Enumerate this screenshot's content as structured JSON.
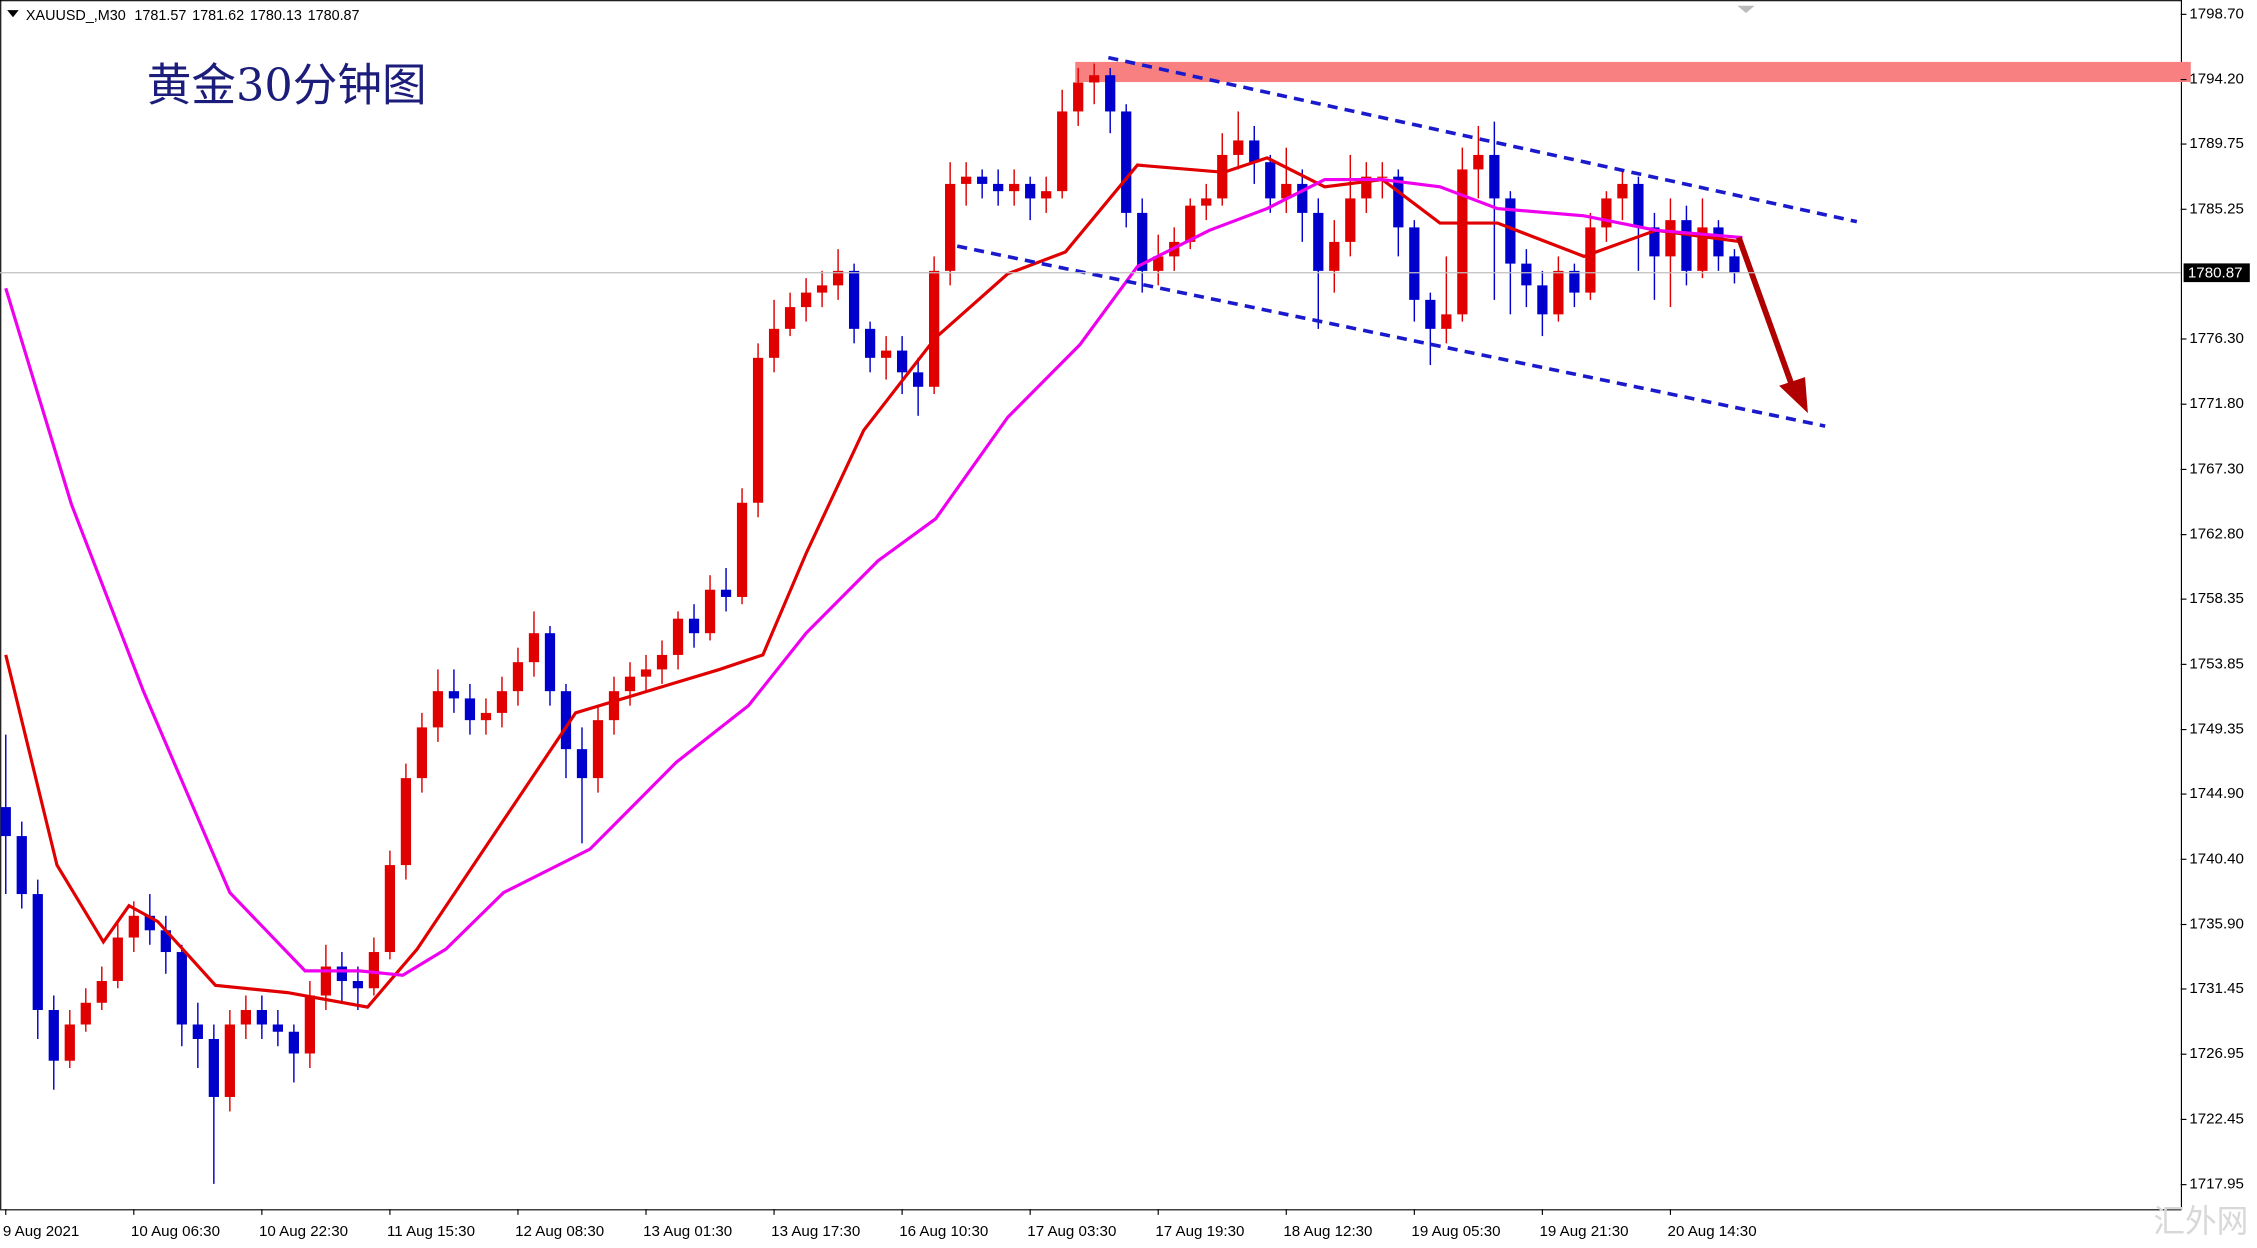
{
  "chart_data": {
    "type": "candlestick",
    "title": "黄金30分钟图",
    "symbol": "XAUUSD_,M30",
    "last_bar_ohlc": [
      1781.57,
      1781.62,
      1780.13,
      1780.87
    ],
    "current_price": 1780.87,
    "watermark": "汇外网",
    "up_color": "#e00000",
    "down_color": "#0000cc",
    "xlim": [
      -0.36,
      135.88
    ],
    "ylim": [
      1716.26,
      1799.69
    ],
    "xticks": [
      {
        "value": 0,
        "label": "9 Aug 2021"
      },
      {
        "value": 8,
        "label": "10 Aug 06:30"
      },
      {
        "value": 16,
        "label": "10 Aug 22:30"
      },
      {
        "value": 24,
        "label": "11 Aug 15:30"
      },
      {
        "value": 32,
        "label": "12 Aug 08:30"
      },
      {
        "value": 40,
        "label": "13 Aug 01:30"
      },
      {
        "value": 48,
        "label": "13 Aug 17:30"
      },
      {
        "value": 56,
        "label": "16 Aug 10:30"
      },
      {
        "value": 64,
        "label": "17 Aug 03:30"
      },
      {
        "value": 72,
        "label": "17 Aug 19:30"
      },
      {
        "value": 80,
        "label": "18 Aug 12:30"
      },
      {
        "value": 88,
        "label": "19 Aug 05:30"
      },
      {
        "value": 96,
        "label": "19 Aug 21:30"
      },
      {
        "value": 104,
        "label": "20 Aug 14:30"
      }
    ],
    "yticks": [
      {
        "value": 1798.7,
        "label": "1798.70"
      },
      {
        "value": 1794.2,
        "label": "1794.20"
      },
      1789.75,
      1785.25,
      {
        "value": 1776.3,
        "label": "1776.30"
      },
      {
        "value": 1771.8,
        "label": "1771.80"
      },
      {
        "value": 1767.3,
        "label": "1767.30"
      },
      {
        "value": 1762.8,
        "label": "1762.80"
      },
      1758.35,
      1753.85,
      1749.35,
      {
        "value": 1744.9,
        "label": "1744.90"
      },
      {
        "value": 1740.4,
        "label": "1740.40"
      },
      {
        "value": 1735.9,
        "label": "1735.90"
      },
      1731.45,
      1726.95,
      1722.45,
      1717.95
    ],
    "open": [
      1744,
      1742,
      1738,
      1730,
      1726.5,
      1729,
      1730.5,
      1732,
      1735,
      1736.5,
      1735.5,
      1734,
      1729,
      1728,
      1724,
      1729,
      1730,
      1729,
      1728.5,
      1727,
      1731,
      1733,
      1732,
      1731.5,
      1734,
      1740,
      1746,
      1749.5,
      1752,
      1751.5,
      1750,
      1750.5,
      1752,
      1754,
      1756,
      1752,
      1748,
      1746,
      1750,
      1752,
      1753,
      1753.5,
      1754.5,
      1757,
      1756,
      1759,
      1758.5,
      1765,
      1775,
      1777,
      1778.5,
      1779.5,
      1780,
      1781,
      1777,
      1775,
      1775.5,
      1774,
      1773,
      1781,
      1787,
      1787.5,
      1787,
      1786.5,
      1787,
      1786,
      1786.5,
      1792,
      1794,
      1794.5,
      1792,
      1785,
      1781,
      1782,
      1783,
      1785.5,
      1786,
      1789,
      1790,
      1788.5,
      1786,
      1787,
      1785,
      1781,
      1783,
      1786,
      1787.5,
      1787.5,
      1784,
      1779,
      1777,
      1778,
      1788,
      1789,
      1786,
      1781.5,
      1780,
      1778,
      1781,
      1779.5,
      1784,
      1786,
      1787,
      1784,
      1782,
      1784.5,
      1781,
      1784,
      1782
    ],
    "high": [
      1749,
      1743,
      1739,
      1731,
      1730,
      1731.5,
      1733,
      1736,
      1737.5,
      1738,
      1736.5,
      1734.5,
      1730.5,
      1729,
      1730,
      1731,
      1731,
      1730,
      1729,
      1732,
      1734.5,
      1734,
      1733,
      1735,
      1741,
      1747,
      1750.5,
      1753.5,
      1753.5,
      1752.5,
      1751.5,
      1753,
      1755,
      1757.5,
      1756.5,
      1752.5,
      1749.5,
      1751,
      1753,
      1754,
      1754.5,
      1755.5,
      1757.5,
      1758,
      1760,
      1760.5,
      1766,
      1776,
      1779,
      1779.5,
      1780.5,
      1781,
      1782.5,
      1781.5,
      1777.5,
      1776.5,
      1776.5,
      1775,
      1782,
      1788.5,
      1788.5,
      1788,
      1788,
      1788,
      1787.5,
      1787.5,
      1793.5,
      1795,
      1795.3,
      1795,
      1792.5,
      1786,
      1783.5,
      1784,
      1786,
      1787,
      1790.5,
      1792,
      1791,
      1789,
      1789.5,
      1788,
      1786,
      1784.5,
      1789,
      1788.5,
      1788.5,
      1788,
      1784.5,
      1779.5,
      1782,
      1789.5,
      1791,
      1791.3,
      1786.5,
      1782.5,
      1781,
      1782,
      1781.5,
      1785,
      1786.5,
      1788,
      1787.5,
      1785,
      1786,
      1785.5,
      1786,
      1784.5,
      1782.5
    ],
    "low": [
      1738,
      1737,
      1728,
      1724.5,
      1726,
      1728.5,
      1730,
      1731.5,
      1734,
      1734.5,
      1732.5,
      1727.5,
      1726,
      1718,
      1723,
      1728,
      1728,
      1727.5,
      1725,
      1726,
      1730,
      1730.5,
      1730,
      1731,
      1733.5,
      1739,
      1745,
      1748.5,
      1750.5,
      1749,
      1749,
      1749.5,
      1751,
      1753,
      1751,
      1746,
      1741.5,
      1745,
      1749,
      1751,
      1752,
      1752.5,
      1753.5,
      1755,
      1755.5,
      1757.5,
      1758,
      1764,
      1774,
      1776.5,
      1777.5,
      1778.5,
      1779,
      1776,
      1774,
      1773.5,
      1772.5,
      1771,
      1772.5,
      1780,
      1785.5,
      1786,
      1785.5,
      1785.5,
      1784.5,
      1785,
      1786,
      1791,
      1792.5,
      1790.5,
      1784,
      1779.5,
      1780,
      1781,
      1782.5,
      1784.5,
      1785.5,
      1788,
      1787,
      1785,
      1785,
      1783,
      1777,
      1779.5,
      1782,
      1785,
      1786,
      1782,
      1777.5,
      1774.5,
      1776,
      1777.5,
      1786,
      1779,
      1778,
      1778.5,
      1776.5,
      1777.5,
      1778.5,
      1779,
      1783,
      1784.5,
      1781,
      1779,
      1778.5,
      1780,
      1780.5,
      1781,
      1780.13
    ],
    "close": [
      1742,
      1738,
      1730,
      1726.5,
      1729,
      1730.5,
      1732,
      1735,
      1736.5,
      1735.5,
      1734,
      1729,
      1728,
      1724,
      1729,
      1730,
      1729,
      1728.5,
      1727,
      1731,
      1733,
      1732,
      1731.5,
      1734,
      1740,
      1746,
      1749.5,
      1752,
      1751.5,
      1750,
      1750.5,
      1752,
      1754,
      1756,
      1752,
      1748,
      1746,
      1750,
      1752,
      1753,
      1753.5,
      1754.5,
      1757,
      1756,
      1759,
      1758.5,
      1765,
      1775,
      1777,
      1778.5,
      1779.5,
      1780,
      1781,
      1777,
      1775,
      1775.5,
      1774,
      1773,
      1781,
      1787,
      1787.5,
      1787,
      1786.5,
      1787,
      1786,
      1786.5,
      1792,
      1794,
      1794.5,
      1792,
      1785,
      1781,
      1782,
      1783,
      1785.5,
      1786,
      1789,
      1790,
      1788.5,
      1786,
      1787,
      1785,
      1781,
      1783,
      1786,
      1787.5,
      1787.5,
      1784,
      1779,
      1777,
      1778,
      1788,
      1789,
      1786,
      1781.5,
      1780,
      1778,
      1781,
      1779.5,
      1784,
      1786,
      1787,
      1784,
      1782,
      1784.5,
      1781,
      1784,
      1782,
      1780.87
    ],
    "moving_averages": [
      {
        "color": "#e00000",
        "x": [
          0,
          3.2,
          6.1,
          7.7,
          9.5,
          13.1,
          17.6,
          22.6,
          25.7,
          31.1,
          35.6,
          40.1,
          44.6,
          47.3,
          50,
          53.6,
          58.1,
          62.6,
          66.2,
          70.7,
          76.1,
          78.8,
          82.4,
          86,
          89.6,
          93.2,
          98.6,
          103.1,
          108.5
        ],
        "values": [
          1754.5,
          1740,
          1734.7,
          1737.2,
          1736.1,
          1731.7,
          1731.2,
          1730.2,
          1734.2,
          1743.1,
          1750.5,
          1752,
          1753.5,
          1754.5,
          1761.5,
          1770,
          1776.4,
          1780.8,
          1782.3,
          1788.3,
          1787.8,
          1788.8,
          1786.8,
          1787.3,
          1784.3,
          1784.3,
          1782,
          1783.8,
          1783
        ]
      },
      {
        "color": "#ee00ee",
        "x": [
          0,
          4.1,
          8.6,
          14,
          18.7,
          22.1,
          24.8,
          27.5,
          31.1,
          36.5,
          41.9,
          46.4,
          50,
          54.5,
          58.1,
          62.6,
          67.1,
          70.7,
          75.2,
          78.8,
          82.4,
          86,
          89.6,
          93.2,
          98.6,
          103.1,
          108.5
        ],
        "values": [
          1779.8,
          1764.9,
          1752,
          1738.1,
          1732.7,
          1732.7,
          1732.4,
          1734.2,
          1738.1,
          1741.1,
          1747.1,
          1751,
          1756,
          1761,
          1763.9,
          1770.9,
          1775.9,
          1781.3,
          1783.8,
          1785.3,
          1787.3,
          1787.3,
          1786.8,
          1785.3,
          1784.8,
          1783.8,
          1783.3
        ]
      }
    ]
  }
}
